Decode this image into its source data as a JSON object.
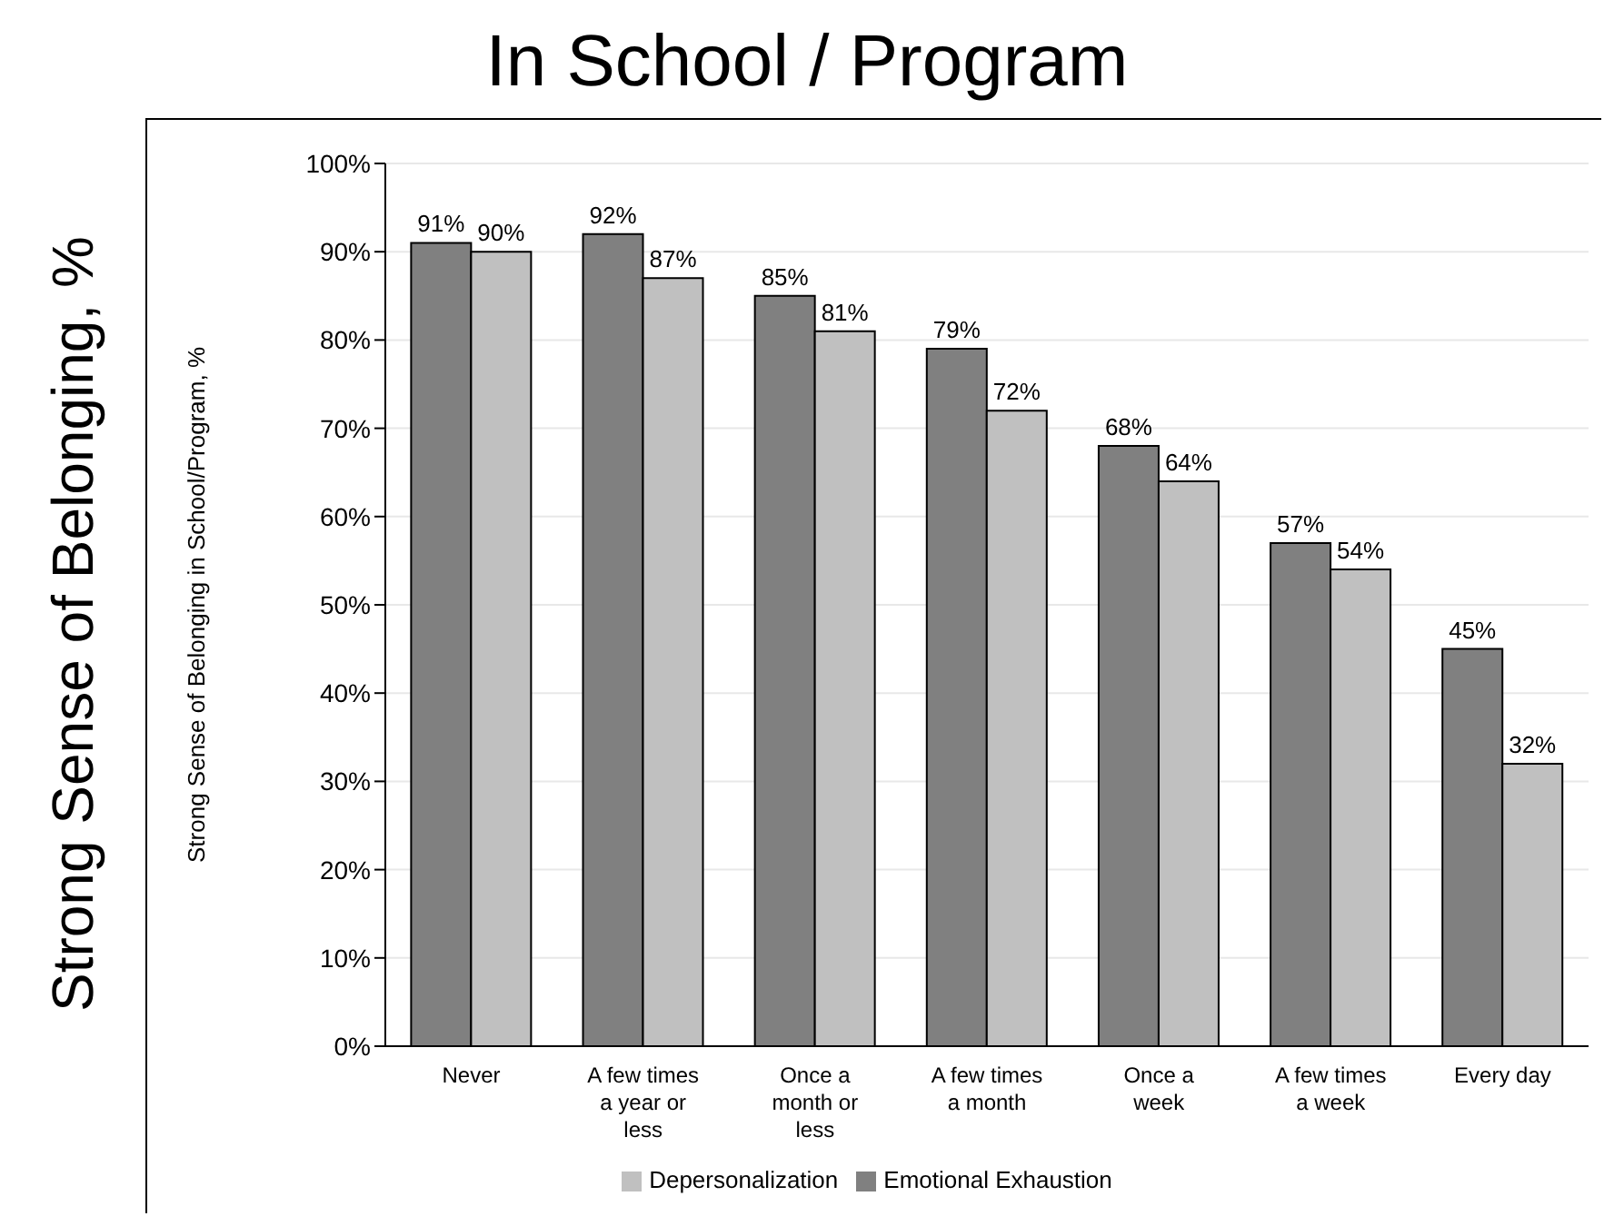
{
  "chart_data": {
    "type": "bar",
    "title": "In School / Program",
    "ylabel": "Strong Sense of Belonging in School/Program, %",
    "annotations": [
      "Strong Sense of Belonging, %"
    ],
    "categories": [
      "Never",
      "A few times\na year or\nless",
      "Once a\nmonth or\nless",
      "A few times\na month",
      "Once a\nweek",
      "A few times\na week",
      "Every day"
    ],
    "series": [
      {
        "name": "Emotional Exhaustion",
        "color": "#808080",
        "values": [
          91,
          92,
          85,
          79,
          68,
          57,
          45
        ],
        "value_labels": [
          "91%",
          "92%",
          "85%",
          "79%",
          "68%",
          "57%",
          "45%"
        ]
      },
      {
        "name": "Depersonalization",
        "color": "#c0c0c0",
        "values": [
          90,
          87,
          81,
          72,
          64,
          54,
          32
        ],
        "value_labels": [
          "90%",
          "87%",
          "81%",
          "72%",
          "64%",
          "54%",
          "32%"
        ]
      }
    ],
    "ylim": [
      0,
      100
    ],
    "yticks": [
      {
        "value": 0,
        "label": "0%"
      },
      {
        "value": 10,
        "label": "10%"
      },
      {
        "value": 20,
        "label": "20%"
      },
      {
        "value": 30,
        "label": "30%"
      },
      {
        "value": 40,
        "label": "40%"
      },
      {
        "value": 50,
        "label": "50%"
      },
      {
        "value": 60,
        "label": "60%"
      },
      {
        "value": 70,
        "label": "70%"
      },
      {
        "value": 80,
        "label": "80%"
      },
      {
        "value": 90,
        "label": "90%"
      },
      {
        "value": 100,
        "label": "100%"
      }
    ],
    "grid": "y",
    "legend": "bottom"
  }
}
